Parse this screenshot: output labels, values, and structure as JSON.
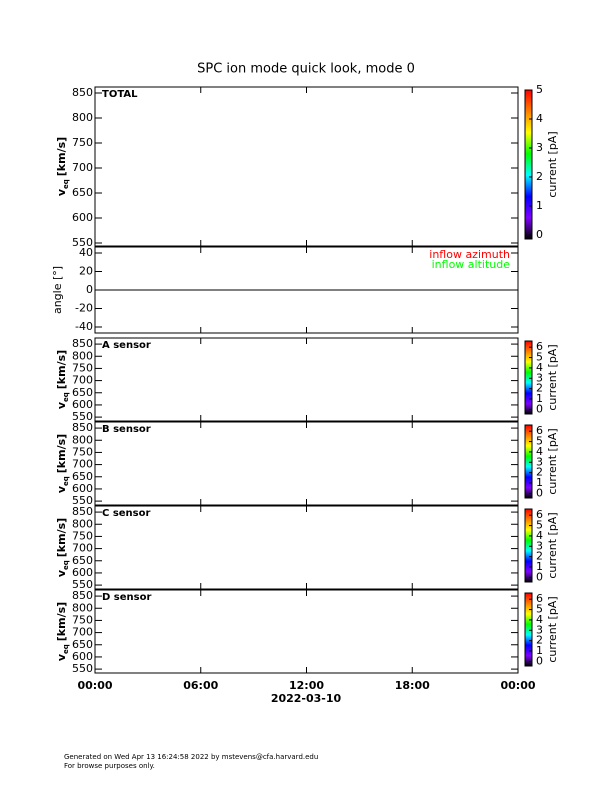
{
  "title": "SPC ion mode quick look, mode 0",
  "xaxis": {
    "xlim": [
      0,
      24
    ],
    "xticks": [
      {
        "value": 0,
        "label": "00:00"
      },
      {
        "value": 6,
        "label": "06:00"
      },
      {
        "value": 12,
        "label": "12:00"
      },
      {
        "value": 18,
        "label": "18:00"
      },
      {
        "value": 24,
        "label": "00:00"
      }
    ],
    "label": "2022-03-10"
  },
  "chart_data": [
    {
      "type": "heatmap",
      "annotation": "TOTAL",
      "ylabel": {
        "main": "v",
        "sub": "eq",
        "unit": "[km/s]"
      },
      "ylim": [
        544,
        862
      ],
      "yticks": [
        550,
        600,
        650,
        700,
        750,
        800,
        850
      ],
      "colorbar": {
        "clim": [
          -0.14,
          5.0
        ],
        "ticks": [
          0,
          1,
          2,
          3,
          4,
          5
        ],
        "label": "current [pA]",
        "colormap": [
          "#000000",
          "#7f00ff",
          "#0000ff",
          "#00ffff",
          "#00ff00",
          "#ffff00",
          "#ff8000",
          "#ff0000"
        ]
      }
    },
    {
      "type": "line",
      "ylabel": "angle [°]",
      "ylim": [
        -46.5,
        46.5
      ],
      "yticks": [
        -40,
        -20,
        0,
        20,
        40
      ],
      "hline": 0,
      "series": [
        {
          "name": "inflow azimuth",
          "color": "#ff0000",
          "values": []
        },
        {
          "name": "inflow altitude",
          "color": "#00ff00",
          "values": []
        }
      ]
    },
    {
      "type": "heatmap",
      "annotation": "A sensor",
      "ylabel": {
        "main": "v",
        "sub": "eq",
        "unit": "[km/s]"
      },
      "ylim": [
        534,
        875
      ],
      "yticks": [
        550,
        600,
        650,
        700,
        750,
        800,
        850
      ],
      "colorbar": {
        "clim": [
          -0.45,
          6.6
        ],
        "ticks": [
          0,
          1,
          2,
          3,
          4,
          5,
          6
        ],
        "label": "current [pA]",
        "colormap": [
          "#000000",
          "#7f00ff",
          "#0000ff",
          "#00ffff",
          "#00ff00",
          "#ffff00",
          "#ff8000",
          "#ff0000"
        ]
      }
    },
    {
      "type": "heatmap",
      "annotation": "B sensor",
      "ylabel": {
        "main": "v",
        "sub": "eq",
        "unit": "[km/s]"
      },
      "ylim": [
        534,
        875
      ],
      "yticks": [
        550,
        600,
        650,
        700,
        750,
        800,
        850
      ],
      "colorbar": {
        "clim": [
          -0.45,
          6.6
        ],
        "ticks": [
          0,
          1,
          2,
          3,
          4,
          5,
          6
        ],
        "label": "current [pA]",
        "colormap": [
          "#000000",
          "#7f00ff",
          "#0000ff",
          "#00ffff",
          "#00ff00",
          "#ffff00",
          "#ff8000",
          "#ff0000"
        ]
      }
    },
    {
      "type": "heatmap",
      "annotation": "C sensor",
      "ylabel": {
        "main": "v",
        "sub": "eq",
        "unit": "[km/s]"
      },
      "ylim": [
        534,
        875
      ],
      "yticks": [
        550,
        600,
        650,
        700,
        750,
        800,
        850
      ],
      "colorbar": {
        "clim": [
          -0.45,
          6.6
        ],
        "ticks": [
          0,
          1,
          2,
          3,
          4,
          5,
          6
        ],
        "label": "current [pA]",
        "colormap": [
          "#000000",
          "#7f00ff",
          "#0000ff",
          "#00ffff",
          "#00ff00",
          "#ffff00",
          "#ff8000",
          "#ff0000"
        ]
      }
    },
    {
      "type": "heatmap",
      "annotation": "D sensor",
      "ylabel": {
        "main": "v",
        "sub": "eq",
        "unit": "[km/s]"
      },
      "ylim": [
        534,
        875
      ],
      "yticks": [
        550,
        600,
        650,
        700,
        750,
        800,
        850
      ],
      "colorbar": {
        "clim": [
          -0.45,
          6.6
        ],
        "ticks": [
          0,
          1,
          2,
          3,
          4,
          5,
          6
        ],
        "label": "current [pA]",
        "colormap": [
          "#000000",
          "#7f00ff",
          "#0000ff",
          "#00ffff",
          "#00ff00",
          "#ffff00",
          "#ff8000",
          "#ff0000"
        ]
      }
    }
  ],
  "footer": [
    "Generated on Wed Apr 13 16:24:58 2022 by mstevens@cfa.harvard.edu",
    "For browse purposes only."
  ]
}
